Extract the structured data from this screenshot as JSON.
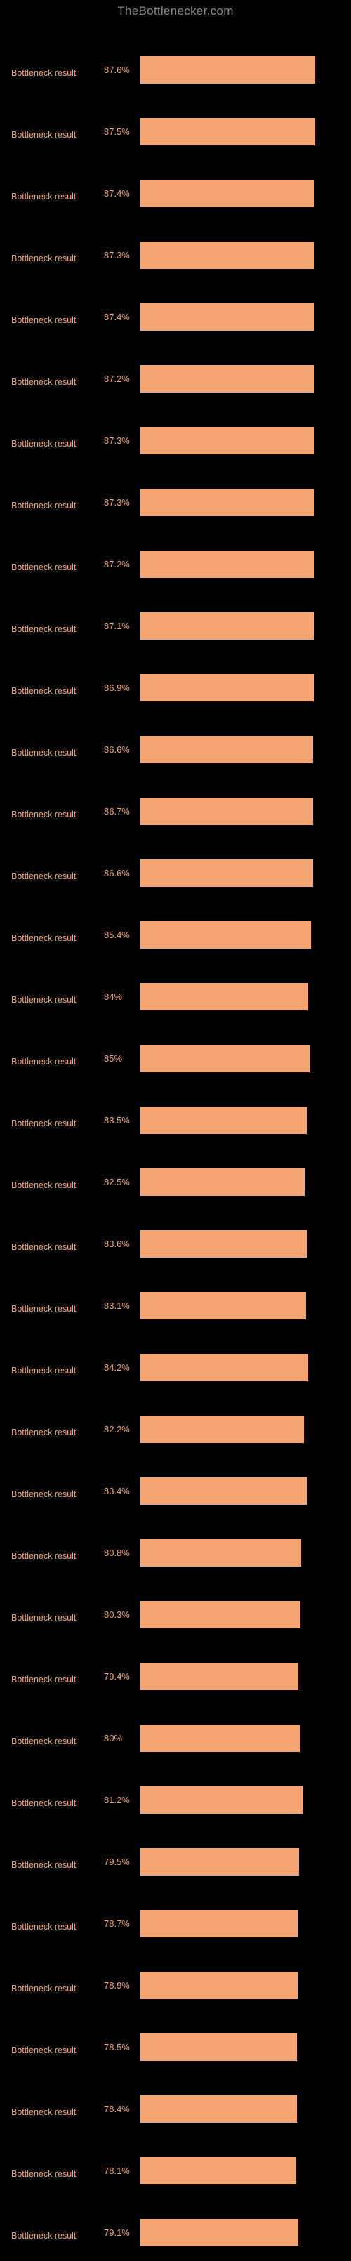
{
  "header": {
    "title": "TheBottlenecker.com"
  },
  "chart": {
    "type": "bar",
    "background_color": "#000000",
    "bar_color": "#f5a571",
    "label_color": "#f5a571",
    "value_color": "#f5a571",
    "header_color": "#888888",
    "sublabel_color": "#666666",
    "max_value": 100,
    "label_fontsize": 12.5,
    "value_fontsize": 13,
    "header_fontsize": 17,
    "rows": [
      {
        "label": "Bottleneck result",
        "value": 87.6,
        "display": "87.6%"
      },
      {
        "label": "Bottleneck result",
        "value": 87.5,
        "display": "87.5%"
      },
      {
        "label": "Bottleneck result",
        "value": 87.4,
        "display": "87.4%"
      },
      {
        "label": "Bottleneck result",
        "value": 87.3,
        "display": "87.3%"
      },
      {
        "label": "Bottleneck result",
        "value": 87.4,
        "display": "87.4%"
      },
      {
        "label": "Bottleneck result",
        "value": 87.2,
        "display": "87.2%"
      },
      {
        "label": "Bottleneck result",
        "value": 87.3,
        "display": "87.3%"
      },
      {
        "label": "Bottleneck result",
        "value": 87.3,
        "display": "87.3%"
      },
      {
        "label": "Bottleneck result",
        "value": 87.2,
        "display": "87.2%"
      },
      {
        "label": "Bottleneck result",
        "value": 87.1,
        "display": "87.1%"
      },
      {
        "label": "Bottleneck result",
        "value": 86.9,
        "display": "86.9%"
      },
      {
        "label": "Bottleneck result",
        "value": 86.6,
        "display": "86.6%"
      },
      {
        "label": "Bottleneck result",
        "value": 86.7,
        "display": "86.7%"
      },
      {
        "label": "Bottleneck result",
        "value": 86.6,
        "display": "86.6%"
      },
      {
        "label": "Bottleneck result",
        "value": 85.4,
        "display": "85.4%"
      },
      {
        "label": "Bottleneck result",
        "value": 84.0,
        "display": "84%"
      },
      {
        "label": "Bottleneck result",
        "value": 85.0,
        "display": "85%"
      },
      {
        "label": "Bottleneck result",
        "value": 83.5,
        "display": "83.5%"
      },
      {
        "label": "Bottleneck result",
        "value": 82.5,
        "display": "82.5%"
      },
      {
        "label": "Bottleneck result",
        "value": 83.6,
        "display": "83.6%"
      },
      {
        "label": "Bottleneck result",
        "value": 83.1,
        "display": "83.1%"
      },
      {
        "label": "Bottleneck result",
        "value": 84.2,
        "display": "84.2%"
      },
      {
        "label": "Bottleneck result",
        "value": 82.2,
        "display": "82.2%"
      },
      {
        "label": "Bottleneck result",
        "value": 83.4,
        "display": "83.4%"
      },
      {
        "label": "Bottleneck result",
        "value": 80.8,
        "display": "80.8%"
      },
      {
        "label": "Bottleneck result",
        "value": 80.3,
        "display": "80.3%"
      },
      {
        "label": "Bottleneck result",
        "value": 79.4,
        "display": "79.4%"
      },
      {
        "label": "Bottleneck result",
        "value": 80.0,
        "display": "80%"
      },
      {
        "label": "Bottleneck result",
        "value": 81.2,
        "display": "81.2%"
      },
      {
        "label": "Bottleneck result",
        "value": 79.5,
        "display": "79.5%"
      },
      {
        "label": "Bottleneck result",
        "value": 78.7,
        "display": "78.7%"
      },
      {
        "label": "Bottleneck result",
        "value": 78.9,
        "display": "78.9%"
      },
      {
        "label": "Bottleneck result",
        "value": 78.5,
        "display": "78.5%"
      },
      {
        "label": "Bottleneck result",
        "value": 78.4,
        "display": "78.4%"
      },
      {
        "label": "Bottleneck result",
        "value": 78.1,
        "display": "78.1%"
      },
      {
        "label": "Bottleneck result",
        "value": 79.1,
        "display": "79.1%"
      }
    ]
  }
}
